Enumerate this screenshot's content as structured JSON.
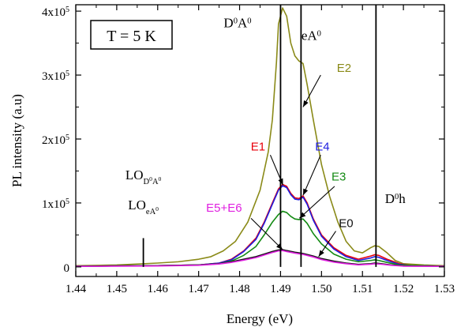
{
  "chart_data": {
    "type": "line",
    "xlabel": "Energy (eV)",
    "ylabel": "PL intensity (a.u)",
    "xlim": [
      1.44,
      1.53
    ],
    "ylim": [
      -15000,
      410000
    ],
    "x_ticks": [
      1.44,
      1.45,
      1.46,
      1.47,
      1.48,
      1.49,
      1.5,
      1.51,
      1.52,
      1.53
    ],
    "x_tick_labels": [
      "1.44",
      "1.45",
      "1.46",
      "1.47",
      "1.48",
      "1.49",
      "1.50",
      "1.51",
      "1.52",
      "1.53"
    ],
    "y_ticks": [
      {
        "value": 0,
        "base": "0",
        "exp": ""
      },
      {
        "value": 100000,
        "base": "1x10",
        "exp": "5"
      },
      {
        "value": 200000,
        "base": "2x10",
        "exp": "5"
      },
      {
        "value": 300000,
        "base": "3x10",
        "exp": "5"
      },
      {
        "value": 400000,
        "base": "4x10",
        "exp": "5"
      }
    ],
    "legend_box": "T = 5 K",
    "vertical_lines": [
      {
        "x": 1.4565,
        "ymax": 45000
      },
      {
        "x": 1.49,
        "ymax": 410000
      },
      {
        "x": 1.495,
        "ymax": 410000
      },
      {
        "x": 1.5133,
        "ymax": 410000
      }
    ],
    "series": [
      {
        "name": "E2",
        "color": "#8a8a18",
        "points": [
          [
            1.44,
            2000
          ],
          [
            1.45,
            3000
          ],
          [
            1.46,
            6000
          ],
          [
            1.465,
            8000
          ],
          [
            1.47,
            12000
          ],
          [
            1.473,
            16000
          ],
          [
            1.476,
            25000
          ],
          [
            1.479,
            40000
          ],
          [
            1.482,
            70000
          ],
          [
            1.485,
            120000
          ],
          [
            1.487,
            180000
          ],
          [
            1.488,
            230000
          ],
          [
            1.489,
            320000
          ],
          [
            1.4895,
            380000
          ],
          [
            1.4905,
            405000
          ],
          [
            1.4915,
            392000
          ],
          [
            1.4925,
            350000
          ],
          [
            1.4935,
            330000
          ],
          [
            1.4945,
            322000
          ],
          [
            1.4955,
            318000
          ],
          [
            1.4965,
            285000
          ],
          [
            1.498,
            230000
          ],
          [
            1.5,
            160000
          ],
          [
            1.502,
            110000
          ],
          [
            1.504,
            70000
          ],
          [
            1.506,
            40000
          ],
          [
            1.508,
            25000
          ],
          [
            1.51,
            22000
          ],
          [
            1.512,
            30000
          ],
          [
            1.513,
            33000
          ],
          [
            1.514,
            32000
          ],
          [
            1.516,
            22000
          ],
          [
            1.518,
            10000
          ],
          [
            1.52,
            5000
          ],
          [
            1.525,
            3000
          ],
          [
            1.53,
            2000
          ]
        ]
      },
      {
        "name": "E1",
        "color": "#e8000b",
        "points": [
          [
            1.44,
            1000
          ],
          [
            1.46,
            2000
          ],
          [
            1.47,
            3000
          ],
          [
            1.475,
            6000
          ],
          [
            1.478,
            12000
          ],
          [
            1.481,
            25000
          ],
          [
            1.484,
            45000
          ],
          [
            1.486,
            70000
          ],
          [
            1.488,
            100000
          ],
          [
            1.4895,
            122000
          ],
          [
            1.4905,
            129000
          ],
          [
            1.4915,
            126000
          ],
          [
            1.4925,
            115000
          ],
          [
            1.4935,
            108000
          ],
          [
            1.4945,
            107000
          ],
          [
            1.4955,
            111000
          ],
          [
            1.4965,
            100000
          ],
          [
            1.498,
            75000
          ],
          [
            1.5,
            50000
          ],
          [
            1.503,
            30000
          ],
          [
            1.506,
            18000
          ],
          [
            1.509,
            12000
          ],
          [
            1.512,
            17000
          ],
          [
            1.513,
            19000
          ],
          [
            1.514,
            18000
          ],
          [
            1.516,
            12000
          ],
          [
            1.519,
            5000
          ],
          [
            1.522,
            2000
          ],
          [
            1.53,
            1000
          ]
        ]
      },
      {
        "name": "E4",
        "color": "#1f1fe0",
        "points": [
          [
            1.44,
            1000
          ],
          [
            1.46,
            2000
          ],
          [
            1.47,
            3000
          ],
          [
            1.475,
            6000
          ],
          [
            1.478,
            11000
          ],
          [
            1.481,
            24000
          ],
          [
            1.484,
            43000
          ],
          [
            1.486,
            68000
          ],
          [
            1.488,
            98000
          ],
          [
            1.4895,
            120000
          ],
          [
            1.4905,
            127000
          ],
          [
            1.4915,
            124000
          ],
          [
            1.4925,
            113000
          ],
          [
            1.4935,
            106000
          ],
          [
            1.4945,
            105000
          ],
          [
            1.4955,
            109000
          ],
          [
            1.4965,
            98000
          ],
          [
            1.498,
            73000
          ],
          [
            1.5,
            48000
          ],
          [
            1.503,
            28000
          ],
          [
            1.506,
            16000
          ],
          [
            1.509,
            10000
          ],
          [
            1.512,
            14000
          ],
          [
            1.513,
            16000
          ],
          [
            1.514,
            15000
          ],
          [
            1.516,
            10000
          ],
          [
            1.519,
            4000
          ],
          [
            1.522,
            2000
          ],
          [
            1.53,
            1000
          ]
        ]
      },
      {
        "name": "E3",
        "color": "#138a13",
        "points": [
          [
            1.44,
            1000
          ],
          [
            1.46,
            2000
          ],
          [
            1.47,
            3000
          ],
          [
            1.475,
            5000
          ],
          [
            1.478,
            9000
          ],
          [
            1.481,
            18000
          ],
          [
            1.484,
            32000
          ],
          [
            1.486,
            50000
          ],
          [
            1.488,
            70000
          ],
          [
            1.4895,
            82000
          ],
          [
            1.4905,
            87000
          ],
          [
            1.4915,
            85000
          ],
          [
            1.4925,
            79000
          ],
          [
            1.4935,
            75000
          ],
          [
            1.4945,
            74000
          ],
          [
            1.4955,
            75000
          ],
          [
            1.4965,
            68000
          ],
          [
            1.498,
            52000
          ],
          [
            1.5,
            36000
          ],
          [
            1.503,
            20000
          ],
          [
            1.506,
            12000
          ],
          [
            1.509,
            8000
          ],
          [
            1.512,
            10000
          ],
          [
            1.513,
            11000
          ],
          [
            1.514,
            10000
          ],
          [
            1.516,
            7000
          ],
          [
            1.519,
            3000
          ],
          [
            1.53,
            1000
          ]
        ]
      },
      {
        "name": "E0",
        "color": "#111111",
        "points": [
          [
            1.44,
            1000
          ],
          [
            1.46,
            2000
          ],
          [
            1.47,
            3000
          ],
          [
            1.475,
            5000
          ],
          [
            1.478,
            8000
          ],
          [
            1.481,
            12000
          ],
          [
            1.484,
            16000
          ],
          [
            1.486,
            20000
          ],
          [
            1.488,
            24000
          ],
          [
            1.4895,
            26500
          ],
          [
            1.4905,
            27000
          ],
          [
            1.4915,
            25500
          ],
          [
            1.4935,
            23000
          ],
          [
            1.4955,
            21000
          ],
          [
            1.498,
            17000
          ],
          [
            1.5,
            13000
          ],
          [
            1.503,
            9000
          ],
          [
            1.506,
            6000
          ],
          [
            1.509,
            4000
          ],
          [
            1.512,
            5000
          ],
          [
            1.513,
            6000
          ],
          [
            1.514,
            5500
          ],
          [
            1.517,
            3000
          ],
          [
            1.52,
            1500
          ],
          [
            1.53,
            1000
          ]
        ]
      },
      {
        "name": "E5+E6",
        "color": "#e020e0",
        "points": [
          [
            1.44,
            800
          ],
          [
            1.46,
            1500
          ],
          [
            1.47,
            2500
          ],
          [
            1.475,
            4500
          ],
          [
            1.478,
            7000
          ],
          [
            1.481,
            10500
          ],
          [
            1.484,
            14500
          ],
          [
            1.486,
            18500
          ],
          [
            1.488,
            22500
          ],
          [
            1.4895,
            25000
          ],
          [
            1.4905,
            25500
          ],
          [
            1.4915,
            24000
          ],
          [
            1.4935,
            21500
          ],
          [
            1.4955,
            19500
          ],
          [
            1.498,
            15500
          ],
          [
            1.5,
            11500
          ],
          [
            1.503,
            7500
          ],
          [
            1.506,
            5000
          ],
          [
            1.509,
            3200
          ],
          [
            1.512,
            4200
          ],
          [
            1.513,
            5000
          ],
          [
            1.514,
            4600
          ],
          [
            1.517,
            2500
          ],
          [
            1.52,
            1200
          ],
          [
            1.53,
            800
          ]
        ]
      }
    ],
    "annotations": [
      {
        "id": "d0a0",
        "parts": [
          [
            "D",
            ""
          ],
          [
            "0",
            "sup"
          ],
          [
            "A",
            ""
          ],
          [
            "0",
            "sup"
          ]
        ],
        "x": 1.4795,
        "y": 375000,
        "size": 17,
        "color": "#000000",
        "font": "serif"
      },
      {
        "id": "ea0",
        "parts": [
          [
            "eA",
            ""
          ],
          [
            "0",
            "sup"
          ]
        ],
        "x": 1.4975,
        "y": 355000,
        "size": 17,
        "color": "#000000",
        "font": "serif"
      },
      {
        "id": "e2",
        "parts": [
          [
            "E2",
            ""
          ]
        ],
        "x": 1.5055,
        "y": 305000,
        "size": 15,
        "color": "#8a8a18",
        "font": "sans"
      },
      {
        "id": "e1",
        "parts": [
          [
            "E1",
            ""
          ]
        ],
        "x": 1.4845,
        "y": 182000,
        "size": 15,
        "color": "#e8000b",
        "font": "sans"
      },
      {
        "id": "e4",
        "parts": [
          [
            "E4",
            ""
          ]
        ],
        "x": 1.5002,
        "y": 182000,
        "size": 15,
        "color": "#1f1fe0",
        "font": "sans"
      },
      {
        "id": "e3",
        "parts": [
          [
            "E3",
            ""
          ]
        ],
        "x": 1.5042,
        "y": 135000,
        "size": 15,
        "color": "#138a13",
        "font": "sans"
      },
      {
        "id": "d0h",
        "parts": [
          [
            "D",
            ""
          ],
          [
            "0",
            "sup"
          ],
          [
            "h",
            ""
          ]
        ],
        "x": 1.518,
        "y": 100000,
        "size": 17,
        "color": "#000000",
        "font": "serif"
      },
      {
        "id": "e0",
        "parts": [
          [
            "E0",
            ""
          ]
        ],
        "x": 1.506,
        "y": 62000,
        "size": 15,
        "color": "#111111",
        "font": "sans"
      },
      {
        "id": "e5e6",
        "parts": [
          [
            "E5+E6",
            ""
          ]
        ],
        "x": 1.4762,
        "y": 86000,
        "size": 15,
        "color": "#e020e0",
        "font": "sans"
      },
      {
        "id": "lo1",
        "parts": [
          [
            "LO",
            ""
          ],
          [
            "D",
            "sub"
          ],
          [
            "0",
            "subsup"
          ],
          [
            "A",
            "sub"
          ],
          [
            "0",
            "subsup"
          ]
        ],
        "x": 1.4565,
        "y": 137000,
        "size": 17,
        "color": "#000000",
        "font": "serif"
      },
      {
        "id": "lo2",
        "parts": [
          [
            "LO",
            ""
          ],
          [
            "eA",
            "sub"
          ],
          [
            "0",
            "subsup"
          ]
        ],
        "x": 1.4565,
        "y": 90000,
        "size": 17,
        "color": "#000000",
        "font": "serif"
      }
    ],
    "arrows": [
      {
        "from": [
          1.4998,
          300000
        ],
        "to": [
          1.4955,
          250000
        ],
        "color": "#000000"
      },
      {
        "from": [
          1.4875,
          175000
        ],
        "to": [
          1.4906,
          128000
        ],
        "color": "#000000"
      },
      {
        "from": [
          1.4998,
          175000
        ],
        "to": [
          1.4955,
          112000
        ],
        "color": "#000000"
      },
      {
        "from": [
          1.5032,
          126000
        ],
        "to": [
          1.4946,
          76000
        ],
        "color": "#000000"
      },
      {
        "from": [
          1.4828,
          76000
        ],
        "to": [
          1.4905,
          27000
        ],
        "color": "#000000"
      },
      {
        "from": [
          1.5035,
          56000
        ],
        "to": [
          1.4993,
          16000
        ],
        "color": "#000000"
      }
    ]
  }
}
